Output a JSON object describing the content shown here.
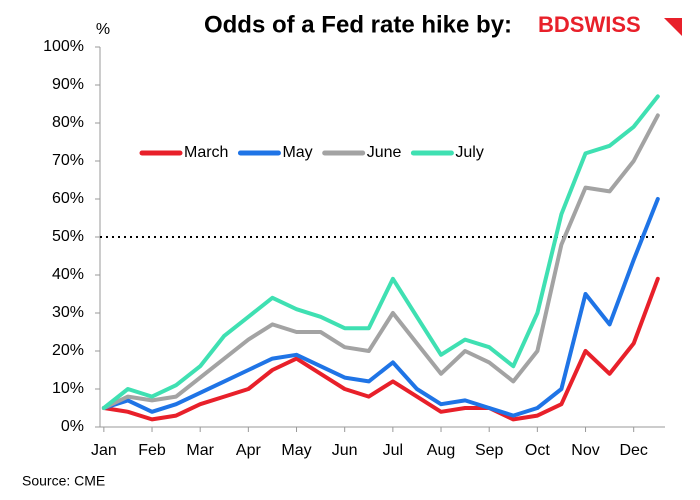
{
  "chart_data": {
    "type": "line",
    "title": "Odds of a Fed rate hike by:",
    "logo": "BDSWISS",
    "y_label": "%",
    "source": "Source: CME",
    "x": [
      0,
      0.5,
      1,
      1.5,
      2,
      2.5,
      3,
      3.5,
      4,
      4.5,
      5,
      5.5,
      6,
      6.5,
      7,
      7.5,
      8,
      8.5,
      9,
      9.5,
      10,
      10.5,
      11,
      11.5
    ],
    "series": [
      {
        "name": "March",
        "color": "#e8202a",
        "values": [
          5,
          4,
          2,
          3,
          6,
          8,
          10,
          15,
          18,
          14,
          10,
          8,
          12,
          8,
          4,
          5,
          5,
          2,
          3,
          6,
          20,
          14,
          22,
          39
        ]
      },
      {
        "name": "May",
        "color": "#1f74e6",
        "values": [
          5,
          7,
          4,
          6,
          9,
          12,
          15,
          18,
          19,
          16,
          13,
          12,
          17,
          10,
          6,
          7,
          5,
          3,
          5,
          10,
          35,
          27,
          44,
          60
        ]
      },
      {
        "name": "June",
        "color": "#a3a3a3",
        "values": [
          5,
          8,
          7,
          8,
          13,
          18,
          23,
          27,
          25,
          25,
          21,
          20,
          30,
          22,
          14,
          20,
          17,
          12,
          20,
          48,
          63,
          62,
          70,
          82
        ]
      },
      {
        "name": "July",
        "color": "#3fe0b2",
        "values": [
          5,
          10,
          8,
          11,
          16,
          24,
          29,
          34,
          31,
          29,
          26,
          26,
          39,
          29,
          19,
          23,
          21,
          16,
          30,
          56,
          72,
          74,
          79,
          87
        ]
      }
    ],
    "hline": 50,
    "xlim": [
      -0.08,
      11.65
    ],
    "xticks": [
      {
        "value": 0,
        "label": "Jan"
      },
      {
        "value": 1,
        "label": "Feb"
      },
      {
        "value": 2,
        "label": "Mar"
      },
      {
        "value": 3,
        "label": "Apr"
      },
      {
        "value": 4,
        "label": "May"
      },
      {
        "value": 5,
        "label": "Jun"
      },
      {
        "value": 6,
        "label": "Jul"
      },
      {
        "value": 7,
        "label": "Aug"
      },
      {
        "value": 8,
        "label": "Sep"
      },
      {
        "value": 9,
        "label": "Oct"
      },
      {
        "value": 10,
        "label": "Nov"
      },
      {
        "value": 11,
        "label": "Dec"
      }
    ],
    "ylim": [
      0,
      100
    ],
    "yticks": [
      {
        "value": 0,
        "label": "0%"
      },
      {
        "value": 10,
        "label": "10%"
      },
      {
        "value": 20,
        "label": "20%"
      },
      {
        "value": 30,
        "label": "30%"
      },
      {
        "value": 40,
        "label": "40%"
      },
      {
        "value": 50,
        "label": "50%"
      },
      {
        "value": 60,
        "label": "60%"
      },
      {
        "value": 70,
        "label": "70%"
      },
      {
        "value": 80,
        "label": "80%"
      },
      {
        "value": 90,
        "label": "90%"
      },
      {
        "value": 100,
        "label": "100%"
      }
    ],
    "grid": false
  }
}
